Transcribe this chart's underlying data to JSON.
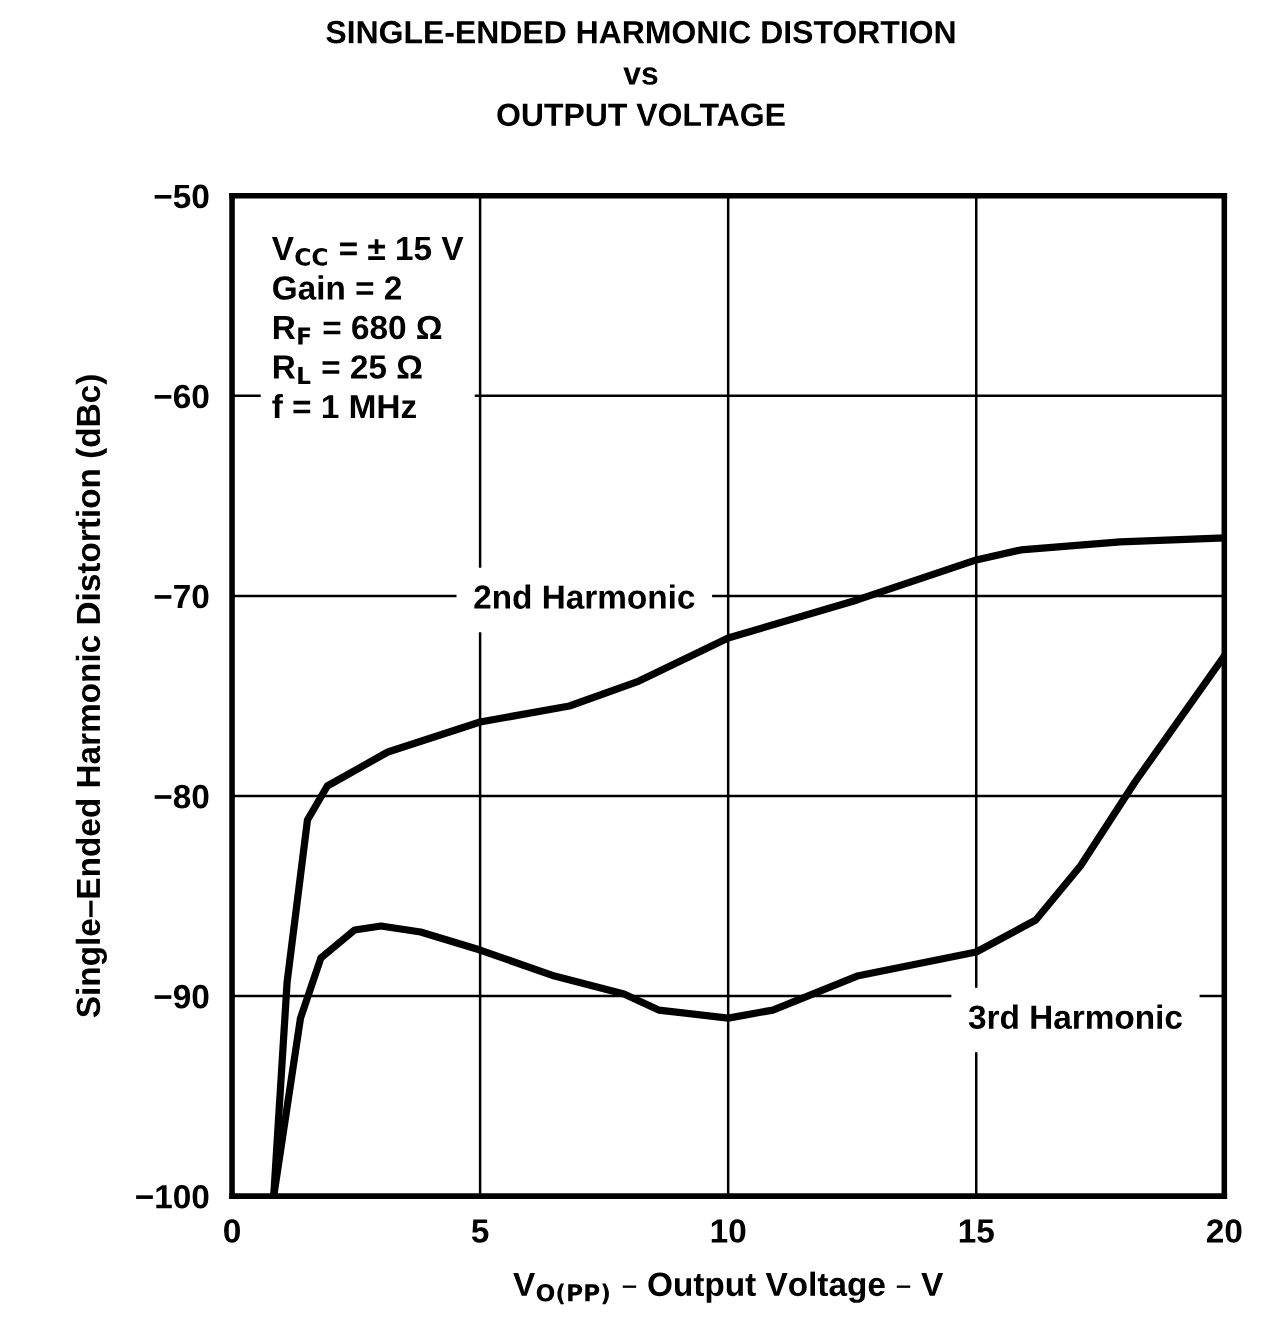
{
  "chart_data": {
    "type": "line",
    "title": "SINGLE-ENDED HARMONIC DISTORTION\nvs\nOUTPUT VOLTAGE",
    "xlabel": "V$_{O(PP)}$ – Output Voltage – V",
    "ylabel": "Single–Ended Harmonic Distortion (dBc)",
    "annotations": [
      "V$_{CC}$ = ± 15 V\nGain = 2\nR$_{F}$ = 680 Ω\nR$_{L}$ = 25 Ω\nf = 1 MHz"
    ],
    "series": [
      {
        "name": "2nd Harmonic",
        "color": "#000000",
        "x": [
          0.84,
          1.11,
          1.52,
          1.92,
          3.14,
          5,
          6.8,
          8.16,
          10,
          12.6,
          15,
          15.9,
          17.9,
          20
        ],
        "values": [
          -100,
          -89.3,
          -81.2,
          -79.5,
          -77.8,
          -76.3,
          -75.5,
          -74.3,
          -72.1,
          -70.2,
          -68.2,
          -67.7,
          -67.3,
          -67.1
        ]
      },
      {
        "name": "3rd Harmonic",
        "color": "#000000",
        "x": [
          0.84,
          1.38,
          1.79,
          2.47,
          3.0,
          3.8,
          5,
          6.5,
          7.9,
          8.6,
          10,
          10.9,
          12.6,
          15,
          16.2,
          17.1,
          18.2,
          20
        ],
        "values": [
          -100,
          -91.1,
          -88.1,
          -86.7,
          -86.5,
          -86.8,
          -87.7,
          -89.0,
          -89.9,
          -90.7,
          -91.1,
          -90.7,
          -89.0,
          -87.8,
          -86.2,
          -83.5,
          -79.3,
          -73.0
        ]
      }
    ],
    "xlim": [
      0,
      20
    ],
    "xticks": [
      0,
      5,
      10,
      15,
      20
    ],
    "ylim": [
      -100,
      -50
    ],
    "yticks": [
      -100,
      -90,
      -80,
      -70,
      -60,
      -50
    ],
    "grid": true,
    "marker": "none",
    "line_style": "solid",
    "legend": false
  }
}
